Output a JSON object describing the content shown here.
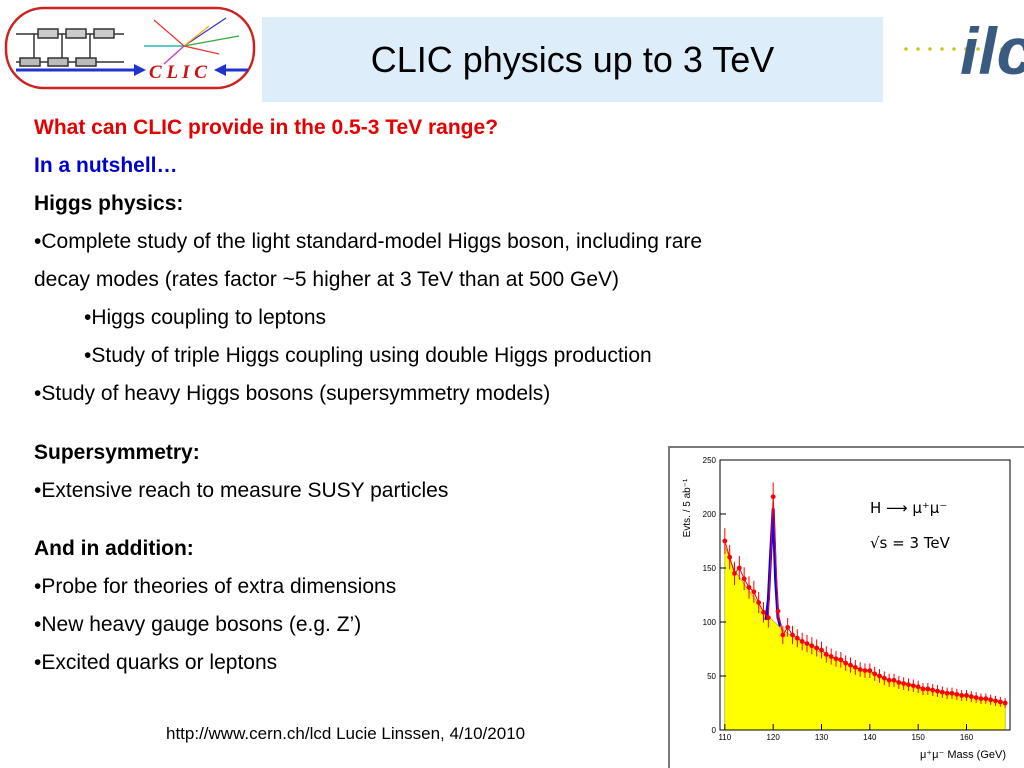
{
  "slide": {
    "title": "CLIC physics up to 3 TeV",
    "clic_logo_text": "C L I C",
    "ilc_logo_text": "ilc",
    "lines": [
      {
        "text": "What can CLIC provide in the 0.5-3 TeV range?"
      },
      {
        "text": "In a nutshell…"
      },
      {
        "text": "Higgs physics:"
      },
      {
        "text": "•Complete study of the light standard-model Higgs boson, including rare"
      },
      {
        "text": "decay modes (rates factor ~5 higher at 3 TeV than at 500 GeV)"
      },
      {
        "text": "•Higgs coupling to leptons"
      },
      {
        "text": "•Study of triple Higgs coupling using double Higgs production"
      },
      {
        "text": "•Study of heavy Higgs bosons (supersymmetry models)"
      },
      {
        "text": "Supersymmetry:"
      },
      {
        "text": "•Extensive reach to measure SUSY particles"
      },
      {
        "text": "And in addition:"
      },
      {
        "text": "•Probe for theories of extra dimensions"
      },
      {
        "text": "•New heavy gauge bosons (e.g. Z’)"
      },
      {
        "text": "•Excited quarks or leptons"
      }
    ],
    "footer": "http://www.cern.ch/lcd   Lucie Linssen, 4/10/2010",
    "colors": {
      "red_heading": "#e60000",
      "blue_heading": "#0000cc",
      "title_bg": "#ddeefa"
    }
  },
  "chart_data": {
    "type": "line",
    "title": "",
    "xlabel": "μ⁺μ⁻ Mass (GeV)",
    "ylabel": "Evts. / 5 ab⁻¹",
    "xlim": [
      109,
      169
    ],
    "ylim": [
      0,
      250
    ],
    "xticks": [
      110,
      120,
      130,
      140,
      150,
      160
    ],
    "yticks": [
      0,
      50,
      100,
      150,
      200,
      250
    ],
    "legend_lines": [
      "H ⟶ μ⁺μ⁻",
      "√s = 3 TeV"
    ],
    "legend_position": "top-right",
    "background_fill_color": "#ffff00",
    "signal_color": "#0000ff",
    "points_color": "#ff0000",
    "background": {
      "x": [
        110,
        112,
        114,
        116,
        118,
        120,
        122,
        124,
        126,
        128,
        130,
        132,
        134,
        136,
        138,
        140,
        142,
        144,
        146,
        148,
        150,
        152,
        154,
        156,
        158,
        160,
        162,
        164,
        166,
        168
      ],
      "y": [
        170,
        148,
        135,
        123,
        110,
        101,
        93,
        86,
        82,
        77,
        71,
        68,
        63,
        60,
        56,
        53,
        50,
        47,
        45,
        43,
        40,
        38,
        36,
        35,
        33,
        32,
        30,
        28,
        27,
        25
      ]
    },
    "signal": {
      "x": [
        118.5,
        119.0,
        119.5,
        120.0,
        120.5,
        121.0,
        121.5
      ],
      "y": [
        102,
        120,
        165,
        205,
        140,
        104,
        96
      ]
    },
    "points": {
      "x": [
        110,
        111,
        112,
        113,
        114,
        115,
        116,
        117,
        118,
        119,
        120,
        121,
        122,
        123,
        124,
        125,
        126,
        127,
        128,
        129,
        130,
        131,
        132,
        133,
        134,
        135,
        136,
        137,
        138,
        139,
        140,
        141,
        142,
        143,
        144,
        145,
        146,
        147,
        148,
        149,
        150,
        151,
        152,
        153,
        154,
        155,
        156,
        157,
        158,
        159,
        160,
        161,
        162,
        163,
        164,
        165,
        166,
        167,
        168
      ],
      "y": [
        175,
        160,
        145,
        150,
        140,
        132,
        128,
        118,
        109,
        104,
        216,
        110,
        88,
        95,
        88,
        85,
        82,
        80,
        78,
        76,
        74,
        70,
        68,
        66,
        65,
        62,
        60,
        58,
        56,
        55,
        55,
        52,
        50,
        48,
        46,
        46,
        44,
        43,
        42,
        41,
        40,
        38,
        38,
        37,
        36,
        35,
        34,
        34,
        33,
        32,
        32,
        31,
        30,
        29,
        29,
        28,
        27,
        26,
        25
      ]
    }
  }
}
